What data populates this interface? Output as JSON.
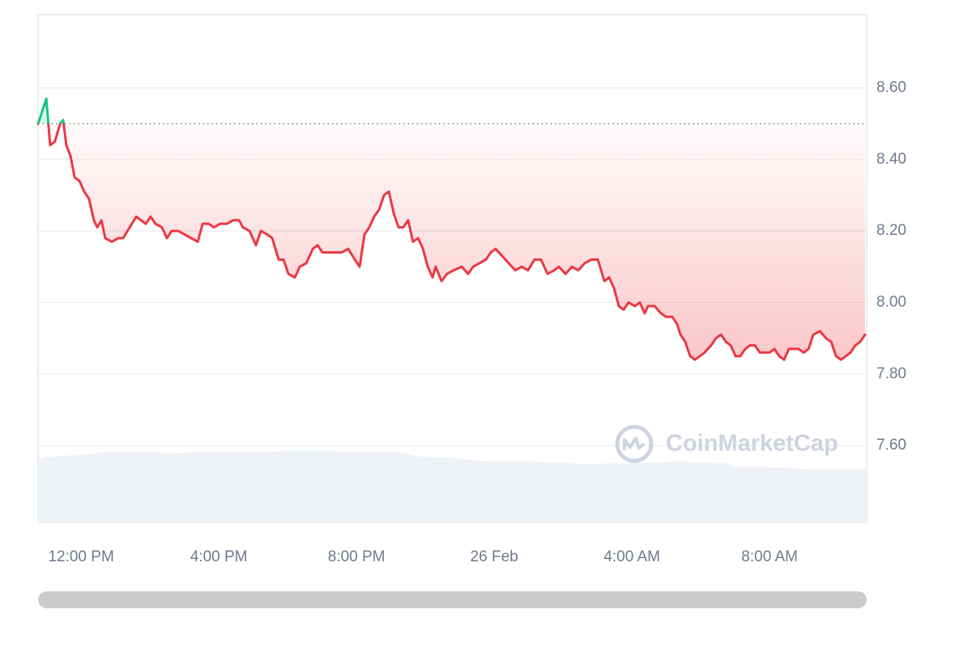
{
  "chart_data": {
    "type": "line",
    "x": [
      10.75,
      10.99,
      11.1,
      11.24,
      11.39,
      11.48,
      11.57,
      11.69,
      11.81,
      11.95,
      12.09,
      12.23,
      12.37,
      12.47,
      12.59,
      12.7,
      12.89,
      13.08,
      13.22,
      13.41,
      13.6,
      13.74,
      13.88,
      14.02,
      14.16,
      14.35,
      14.49,
      14.63,
      14.82,
      15.01,
      15.2,
      15.39,
      15.53,
      15.71,
      15.86,
      16.04,
      16.23,
      16.42,
      16.59,
      16.7,
      16.89,
      17.08,
      17.22,
      17.41,
      17.55,
      17.74,
      17.88,
      18.02,
      18.21,
      18.35,
      18.54,
      18.73,
      18.87,
      19.01,
      19.2,
      19.39,
      19.57,
      19.76,
      19.95,
      20.09,
      20.23,
      20.37,
      20.51,
      20.66,
      20.8,
      20.94,
      21.08,
      21.22,
      21.36,
      21.5,
      21.64,
      21.79,
      21.93,
      22.07,
      22.21,
      22.3,
      22.47,
      22.63,
      22.82,
      23.06,
      23.24,
      23.39,
      23.57,
      23.76,
      23.9,
      24.04,
      24.23,
      24.42,
      24.61,
      24.8,
      24.98,
      25.17,
      25.36,
      25.55,
      25.74,
      25.88,
      26.07,
      26.26,
      26.44,
      26.63,
      26.82,
      27.01,
      27.2,
      27.34,
      27.48,
      27.62,
      27.76,
      27.9,
      28.09,
      28.23,
      28.37,
      28.47,
      28.66,
      28.84,
      28.99,
      29.17,
      29.31,
      29.41,
      29.55,
      29.69,
      29.83,
      29.97,
      30.11,
      30.3,
      30.44,
      30.59,
      30.73,
      30.87,
      31.01,
      31.15,
      31.29,
      31.43,
      31.57,
      31.72,
      31.86,
      32.0,
      32.14,
      32.28,
      32.42,
      32.56,
      32.7,
      32.84,
      32.99,
      33.13,
      33.27,
      33.46,
      33.64,
      33.79,
      33.93,
      34.07,
      34.21,
      34.35,
      34.49,
      34.63,
      34.77
    ],
    "values": [
      8.5,
      8.57,
      8.44,
      8.45,
      8.5,
      8.51,
      8.44,
      8.41,
      8.35,
      8.34,
      8.31,
      8.29,
      8.23,
      8.21,
      8.23,
      8.18,
      8.17,
      8.18,
      8.18,
      8.21,
      8.24,
      8.23,
      8.22,
      8.24,
      8.22,
      8.21,
      8.18,
      8.2,
      8.2,
      8.19,
      8.18,
      8.17,
      8.22,
      8.22,
      8.21,
      8.22,
      8.22,
      8.23,
      8.23,
      8.21,
      8.2,
      8.16,
      8.2,
      8.19,
      8.18,
      8.12,
      8.12,
      8.08,
      8.07,
      8.1,
      8.11,
      8.15,
      8.16,
      8.14,
      8.14,
      8.14,
      8.14,
      8.15,
      8.12,
      8.1,
      8.19,
      8.21,
      8.24,
      8.26,
      8.3,
      8.31,
      8.25,
      8.21,
      8.21,
      8.23,
      8.17,
      8.18,
      8.15,
      8.1,
      8.07,
      8.1,
      8.06,
      8.08,
      8.09,
      8.1,
      8.08,
      8.1,
      8.11,
      8.12,
      8.14,
      8.15,
      8.13,
      8.11,
      8.09,
      8.1,
      8.09,
      8.12,
      8.12,
      8.08,
      8.09,
      8.1,
      8.08,
      8.1,
      8.09,
      8.11,
      8.12,
      8.12,
      8.06,
      8.07,
      8.04,
      7.99,
      7.98,
      8.0,
      7.99,
      8.0,
      7.97,
      7.99,
      7.99,
      7.97,
      7.96,
      7.96,
      7.94,
      7.91,
      7.89,
      7.85,
      7.84,
      7.85,
      7.86,
      7.88,
      7.9,
      7.91,
      7.89,
      7.88,
      7.85,
      7.85,
      7.87,
      7.88,
      7.88,
      7.86,
      7.86,
      7.86,
      7.87,
      7.85,
      7.84,
      7.87,
      7.87,
      7.87,
      7.86,
      7.87,
      7.91,
      7.92,
      7.9,
      7.89,
      7.85,
      7.84,
      7.85,
      7.86,
      7.88,
      7.89,
      7.91
    ],
    "xlim": [
      10.75,
      34.82
    ],
    "xticks": [
      {
        "value": 12,
        "label": "12:00 PM"
      },
      {
        "value": 16,
        "label": "4:00 PM"
      },
      {
        "value": 20,
        "label": "8:00 PM"
      },
      {
        "value": 24,
        "label": "26 Feb"
      },
      {
        "value": 28,
        "label": "4:00 AM"
      },
      {
        "value": 32,
        "label": "8:00 AM"
      }
    ],
    "ylim": [
      7.385,
      8.805
    ],
    "yticks": [
      {
        "value": 7.6,
        "label": "7.60"
      },
      {
        "value": 7.8,
        "label": "7.80"
      },
      {
        "value": 8.0,
        "label": "8.00"
      },
      {
        "value": 8.2,
        "label": "8.20"
      },
      {
        "value": 8.4,
        "label": "8.40"
      },
      {
        "value": 8.6,
        "label": "8.60"
      }
    ],
    "reference_line": 8.5,
    "up_color": "#16c784",
    "down_color": "#ea3943",
    "grid": true,
    "watermark": "CoinMarketCap"
  }
}
